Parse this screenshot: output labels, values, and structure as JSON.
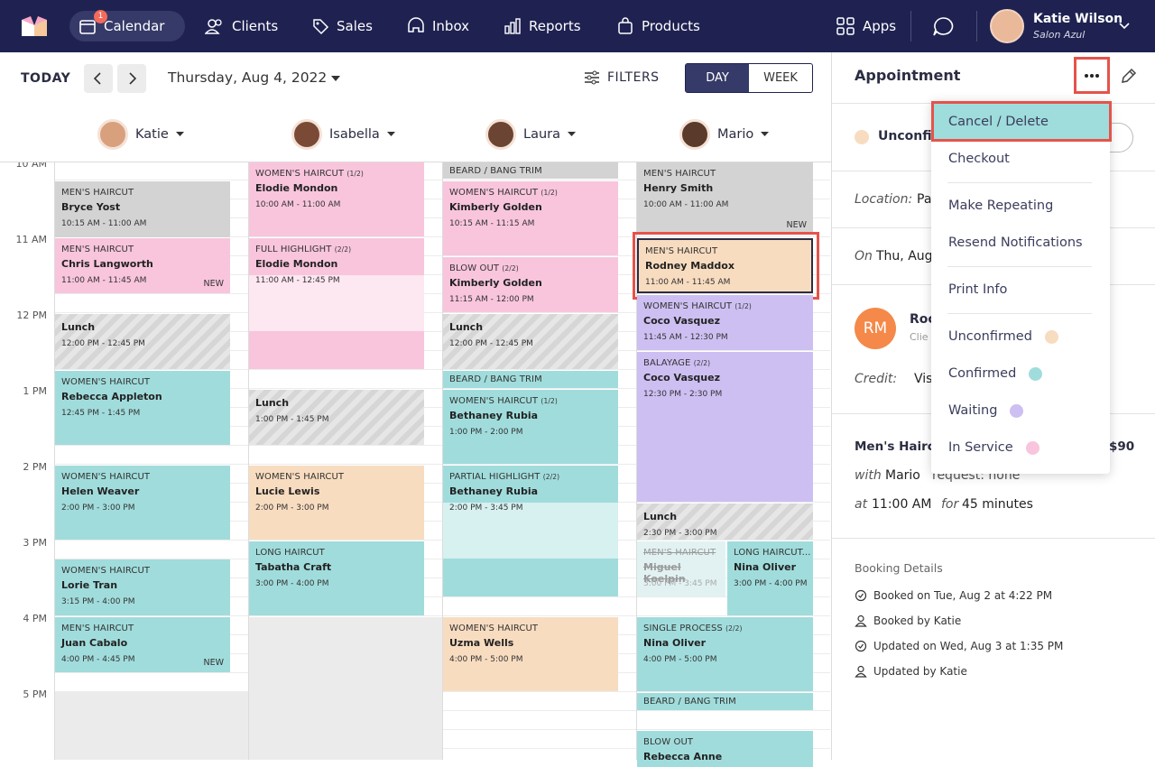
{
  "nav": {
    "items": [
      "Calendar",
      "Clients",
      "Sales",
      "Inbox",
      "Reports",
      "Products"
    ],
    "badge": "1",
    "apps": "Apps",
    "user": {
      "name": "Katie Wilson",
      "salon": "Salon Azul"
    }
  },
  "toolbar": {
    "today": "TODAY",
    "date": "Thursday, Aug 4, 2022",
    "filters": "FILTERS",
    "views": [
      "DAY",
      "WEEK"
    ]
  },
  "staff": [
    "Katie",
    "Isabella",
    "Laura",
    "Mario"
  ],
  "times": [
    "10 AM",
    "11 AM",
    "12 PM",
    "1 PM",
    "2 PM",
    "3 PM",
    "4 PM",
    "5 PM"
  ],
  "appointments": [
    {
      "service": "MEN'S HAIRCUT",
      "client": "Bryce Yost",
      "time": "10:15 AM - 11:00 AM"
    },
    {
      "service": "MEN'S HAIRCUT",
      "client": "Chris Langworth",
      "time": "11:00 AM - 11:45 AM",
      "tag": "NEW"
    },
    {
      "client": "Lunch",
      "time": "12:00 PM - 12:45 PM"
    },
    {
      "service": "WOMEN'S HAIRCUT",
      "client": "Rebecca Appleton",
      "time": "12:45 PM - 1:45 PM"
    },
    {
      "service": "WOMEN'S HAIRCUT",
      "client": "Helen Weaver",
      "time": "2:00 PM - 3:00 PM"
    },
    {
      "service": "WOMEN'S HAIRCUT",
      "client": "Lorie Tran",
      "time": "3:15 PM - 4:00 PM"
    },
    {
      "service": "MEN'S HAIRCUT",
      "client": "Juan Cabalo",
      "time": "4:00 PM - 4:45 PM",
      "tag": "NEW"
    },
    {
      "service": "WOMEN'S HAIRCUT",
      "part": "(1/2)",
      "client": "Elodie Mondon",
      "time": "10:00 AM - 11:00 AM"
    },
    {
      "service": "FULL HIGHLIGHT",
      "part": "(2/2)",
      "client": "Elodie Mondon",
      "time": "11:00 AM - 12:45 PM"
    },
    {
      "client": "Lunch",
      "time": "1:00 PM - 1:45 PM"
    },
    {
      "service": "WOMEN'S HAIRCUT",
      "client": "Lucie Lewis",
      "time": "2:00 PM - 3:00 PM"
    },
    {
      "service": "LONG HAIRCUT",
      "client": "Tabatha Craft",
      "time": "3:00 PM - 4:00 PM"
    },
    {
      "service": "BEARD / BANG TRIM"
    },
    {
      "service": "WOMEN'S HAIRCUT",
      "part": "(1/2)",
      "client": "Kimberly Golden",
      "time": "10:15 AM - 11:15 AM"
    },
    {
      "service": "BLOW OUT",
      "part": "(2/2)",
      "client": "Kimberly Golden",
      "time": "11:15 AM - 12:00 PM"
    },
    {
      "client": "Lunch",
      "time": "12:00 PM - 12:45 PM"
    },
    {
      "service": "BEARD / BANG TRIM"
    },
    {
      "service": "WOMEN'S HAIRCUT",
      "part": "(1/2)",
      "client": "Bethaney Rubia",
      "time": "1:00 PM - 2:00 PM"
    },
    {
      "service": "PARTIAL HIGHLIGHT",
      "part": "(2/2)",
      "client": "Bethaney Rubia",
      "time": "2:00 PM - 3:45 PM"
    },
    {
      "service": "WOMEN'S HAIRCUT",
      "client": "Uzma Wells",
      "time": "4:00 PM - 5:00 PM"
    },
    {
      "service": "MEN'S HAIRCUT",
      "client": "Henry Smith",
      "time": "10:00 AM - 11:00 AM",
      "tag": "NEW"
    },
    {
      "service": "MEN'S HAIRCUT",
      "client": "Rodney Maddox",
      "time": "11:00 AM - 11:45 AM"
    },
    {
      "service": "WOMEN'S HAIRCUT",
      "part": "(1/2)",
      "client": "Coco Vasquez",
      "time": "11:45 AM - 12:30 PM"
    },
    {
      "service": "BALAYAGE",
      "part": "(2/2)",
      "client": "Coco Vasquez",
      "time": "12:30 PM - 2:30 PM"
    },
    {
      "client": "Lunch",
      "time": "2:30 PM - 3:00 PM"
    },
    {
      "service": "MEN'S HAIRCUT",
      "client": "Miguel Koelpin",
      "time": "3:00 PM - 3:45 PM"
    },
    {
      "service": "LONG HAIRCUT...",
      "client": "Nina Oliver",
      "time": "3:00 PM - 4:00 PM"
    },
    {
      "service": "SINGLE PROCESS",
      "part": "(2/2)",
      "client": "Nina Oliver",
      "time": "4:00 PM - 5:00 PM"
    },
    {
      "service": "BEARD / BANG TRIM"
    },
    {
      "service": "BLOW OUT",
      "client": "Rebecca Anne"
    }
  ],
  "panel": {
    "title": "Appointment",
    "status": "Unconfi",
    "location_label": "Location:",
    "location": "Pa",
    "on_label": "On",
    "on": "Thu, Aug",
    "client_initials": "RM",
    "client_name": "Roc",
    "client_sub": "Clie",
    "credit_label": "Credit:",
    "credit": "Vis",
    "service": "Men's Hairc",
    "price": "$90",
    "with_label": "with",
    "with": "Mario",
    "request": "request: none",
    "at_label": "at",
    "at": "11:00 AM",
    "for_label": "for",
    "for": "45 minutes",
    "booking_title": "Booking Details",
    "booking": [
      "Booked on Tue, Aug 2 at 4:22 PM",
      "Booked by Katie",
      "Updated on Wed, Aug 3 at 1:35 PM",
      "Updated by Katie"
    ]
  },
  "menu": [
    "Cancel / Delete",
    "Checkout",
    "Make Repeating",
    "Resend Notifications",
    "Print Info",
    "Unconfirmed",
    "Confirmed",
    "Waiting",
    "In Service"
  ]
}
